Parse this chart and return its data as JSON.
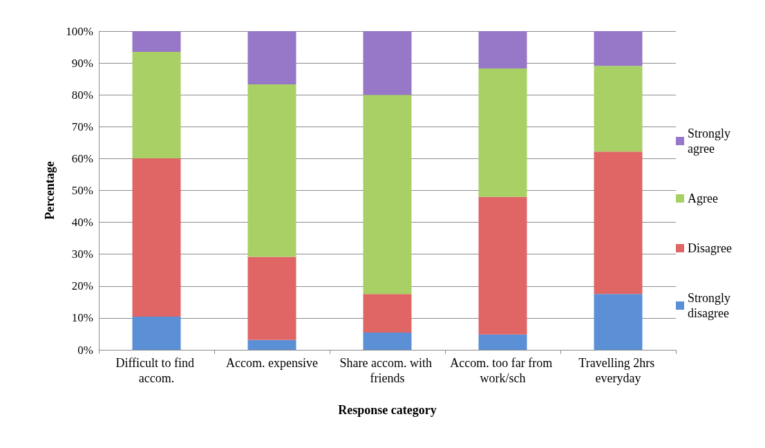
{
  "chart_data": {
    "type": "bar",
    "stacked": true,
    "xlabel": "Response category",
    "ylabel": "Percentage",
    "categories": [
      "Difficult to find accom.",
      "Accom. expensive",
      "Share accom. with friends",
      "Accom. too far from work/sch",
      "Travelling 2hrs everyday"
    ],
    "series": [
      {
        "name": "Strongly disagree",
        "color": "#5b8fd6",
        "values": [
          10.4,
          3.1,
          5.4,
          4.8,
          17.5
        ]
      },
      {
        "name": "Disagree",
        "color": "#e06666",
        "values": [
          49.7,
          26.1,
          12.1,
          43.2,
          44.7
        ]
      },
      {
        "name": "Agree",
        "color": "#a8d064",
        "values": [
          33.4,
          54.1,
          62.5,
          40.3,
          26.9
        ]
      },
      {
        "name": "Strongly agree",
        "color": "#9677c8",
        "values": [
          6.5,
          16.7,
          20.0,
          11.7,
          10.9
        ]
      }
    ],
    "ylim": [
      0,
      100
    ],
    "yticks": [
      {
        "value": 0,
        "label": "0%"
      },
      {
        "value": 10,
        "label": "10%"
      },
      {
        "value": 20,
        "label": "20%"
      },
      {
        "value": 30,
        "label": "30%"
      },
      {
        "value": 40,
        "label": "40%"
      },
      {
        "value": 50,
        "label": "50%"
      },
      {
        "value": 60,
        "label": "60%"
      },
      {
        "value": 70,
        "label": "70%"
      },
      {
        "value": 80,
        "label": "80%"
      },
      {
        "value": 90,
        "label": "90%"
      },
      {
        "value": 100,
        "label": "100%"
      }
    ],
    "grid": "y",
    "legend": "right"
  }
}
